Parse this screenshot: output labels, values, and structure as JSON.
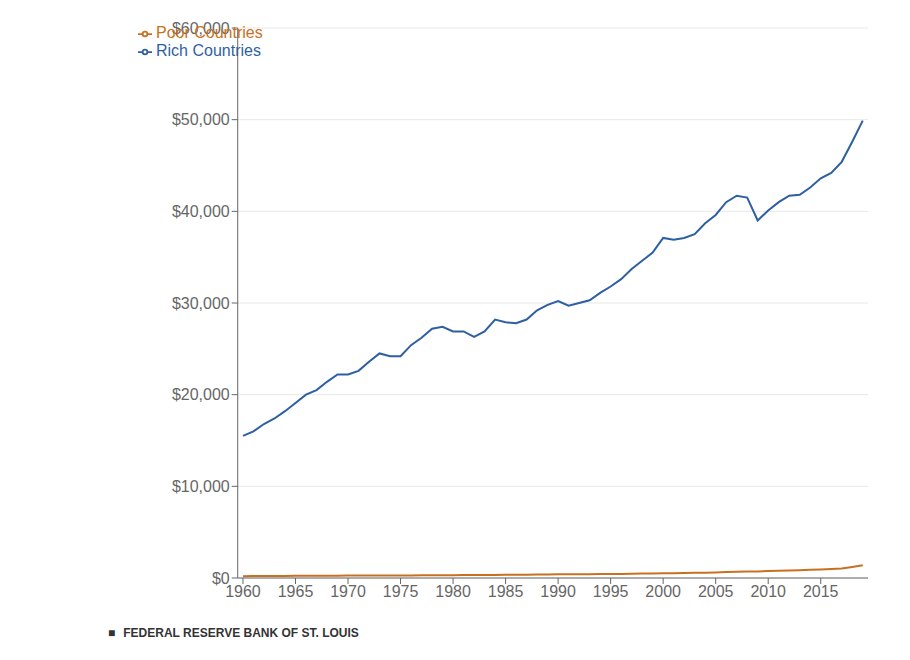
{
  "chart_data": {
    "type": "line",
    "x": [
      1960,
      1961,
      1962,
      1963,
      1964,
      1965,
      1966,
      1967,
      1968,
      1969,
      1970,
      1971,
      1972,
      1973,
      1974,
      1975,
      1976,
      1977,
      1978,
      1979,
      1980,
      1981,
      1982,
      1983,
      1984,
      1985,
      1986,
      1987,
      1988,
      1989,
      1990,
      1991,
      1992,
      1993,
      1994,
      1995,
      1996,
      1997,
      1998,
      1999,
      2000,
      2001,
      2002,
      2003,
      2004,
      2005,
      2006,
      2007,
      2008,
      2009,
      2010,
      2011,
      2012,
      2013,
      2014,
      2015,
      2016,
      2017,
      2018,
      2019
    ],
    "series": [
      {
        "name": "Rich Countries",
        "color": "#2E5FA3",
        "values": [
          15500,
          16000,
          16800,
          17400,
          18200,
          19100,
          20000,
          20500,
          21400,
          22200,
          22200,
          22600,
          23600,
          24500,
          24200,
          24200,
          25400,
          26200,
          27200,
          27400,
          26900,
          26900,
          26300,
          26900,
          28200,
          27900,
          27800,
          28200,
          29200,
          29800,
          30200,
          29700,
          30000,
          30300,
          31100,
          31800,
          32600,
          33700,
          34600,
          35500,
          37100,
          36900,
          37100,
          37500,
          38700,
          39600,
          41000,
          41700,
          41500,
          39000,
          40100,
          41000,
          41700,
          41800,
          42600,
          43600,
          44200,
          45400,
          47600,
          49900
        ]
      },
      {
        "name": "Poor Countries",
        "color": "#C87020",
        "values": [
          200,
          210,
          215,
          220,
          228,
          235,
          240,
          245,
          250,
          258,
          262,
          268,
          272,
          280,
          282,
          280,
          285,
          292,
          300,
          308,
          312,
          318,
          322,
          328,
          336,
          344,
          352,
          362,
          374,
          386,
          396,
          400,
          406,
          412,
          424,
          436,
          448,
          462,
          478,
          495,
          520,
          528,
          540,
          560,
          584,
          608,
          644,
          680,
          714,
          704,
          752,
          784,
          816,
          848,
          888,
          936,
          984,
          1040,
          1200,
          1380
        ]
      }
    ],
    "xlim": [
      1959.5,
      2019.5
    ],
    "xticks": [
      1960,
      1965,
      1970,
      1975,
      1980,
      1985,
      1990,
      1995,
      2000,
      2005,
      2010,
      2015
    ],
    "ylim": [
      0,
      60000
    ],
    "yticks": [
      {
        "value": 0,
        "label": "$0"
      },
      {
        "value": 10000,
        "label": "$10,000"
      },
      {
        "value": 20000,
        "label": "$20,000"
      },
      {
        "value": 30000,
        "label": "$30,000"
      },
      {
        "value": 40000,
        "label": "$40,000"
      },
      {
        "value": 50000,
        "label": "$50,000"
      },
      {
        "value": 60000,
        "label": "$60,000"
      }
    ],
    "grid": true,
    "legend": "upper left",
    "annotations": [
      "■",
      "FEDERAL RESERVE BANK OF ST. LOUIS"
    ]
  }
}
